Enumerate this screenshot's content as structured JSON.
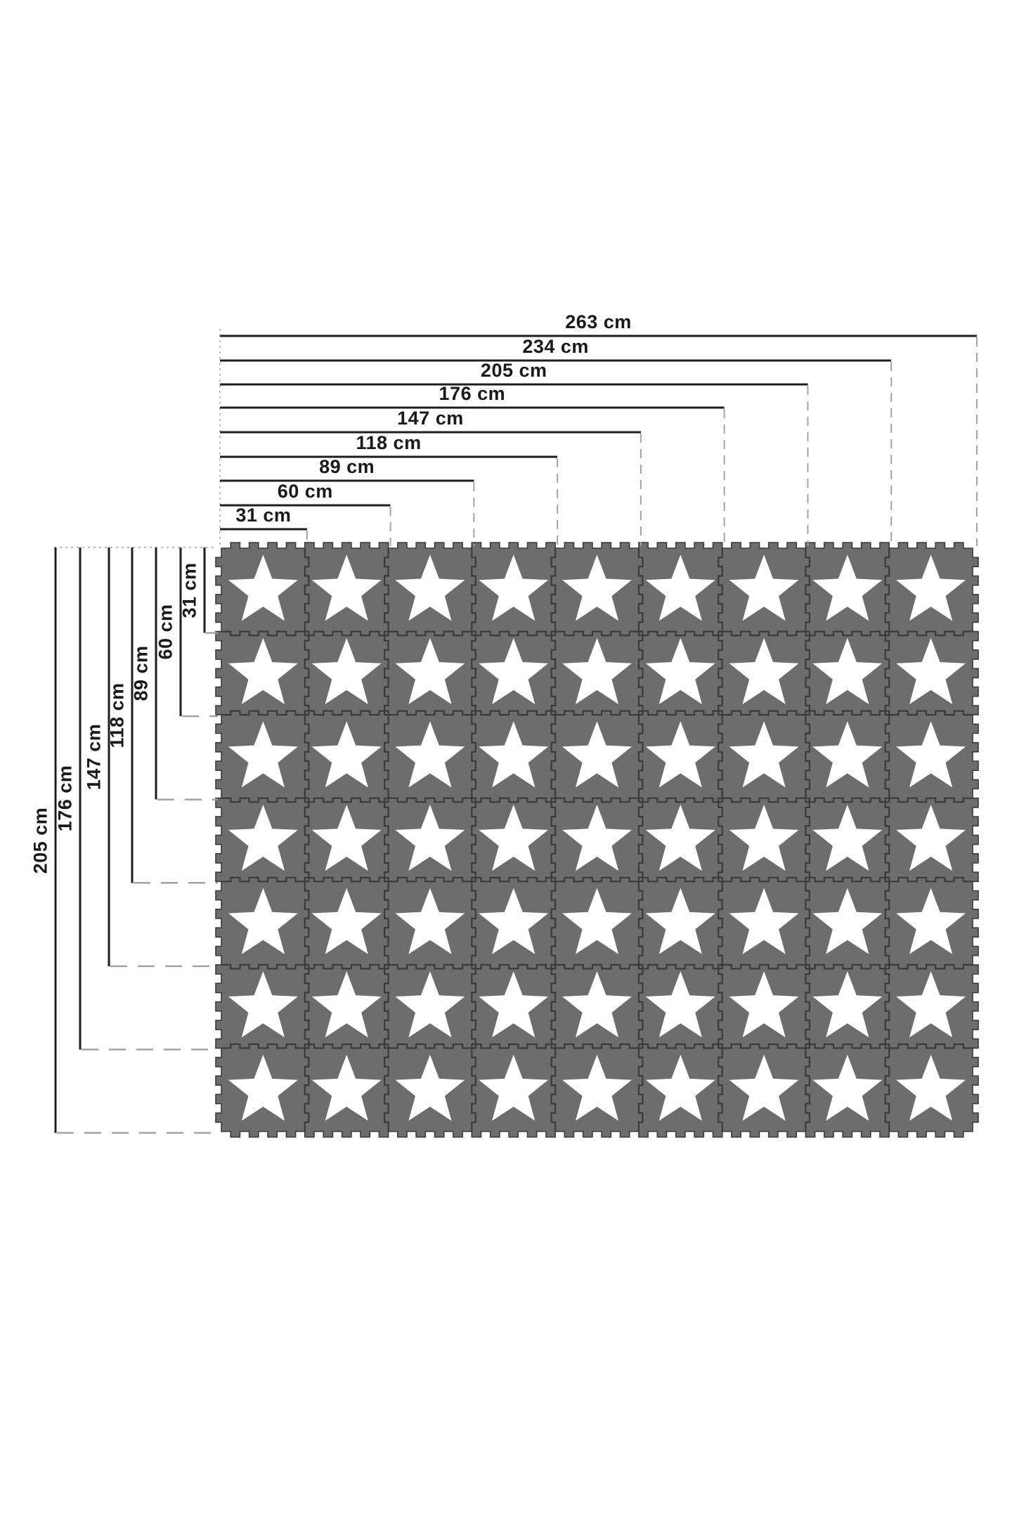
{
  "page": {
    "background": "#ffffff"
  },
  "mat": {
    "rows": 7,
    "cols": 9,
    "tile_color": "#6d6d6d",
    "seam_color": "#3a3a3a",
    "star_color": "#ffffff",
    "motif": "star"
  },
  "dimensions": {
    "unit": "cm",
    "horizontal": [
      {
        "label": "263 cm",
        "value_cm": 263,
        "tiles": 9
      },
      {
        "label": "234 cm",
        "value_cm": 234,
        "tiles": 8
      },
      {
        "label": "205 cm",
        "value_cm": 205,
        "tiles": 7
      },
      {
        "label": "176 cm",
        "value_cm": 176,
        "tiles": 6
      },
      {
        "label": "147 cm",
        "value_cm": 147,
        "tiles": 5
      },
      {
        "label": "118 cm",
        "value_cm": 118,
        "tiles": 4
      },
      {
        "label": "89 cm",
        "value_cm": 89,
        "tiles": 3
      },
      {
        "label": "60 cm",
        "value_cm": 60,
        "tiles": 2
      },
      {
        "label": "31 cm",
        "value_cm": 31,
        "tiles": 1
      }
    ],
    "vertical": [
      {
        "label": "205 cm",
        "value_cm": 205,
        "tiles": 7
      },
      {
        "label": "176 cm",
        "value_cm": 176,
        "tiles": 6
      },
      {
        "label": "147 cm",
        "value_cm": 147,
        "tiles": 5
      },
      {
        "label": "118 cm",
        "value_cm": 118,
        "tiles": 4
      },
      {
        "label": "89 cm",
        "value_cm": 89,
        "tiles": 3
      },
      {
        "label": "60 cm",
        "value_cm": 60,
        "tiles": 2
      },
      {
        "label": "31 cm",
        "value_cm": 31,
        "tiles": 1
      }
    ]
  },
  "colors": {
    "dimension_line": "#1e1e1e",
    "label_text": "#1a1a1a",
    "dashed_guide": "#a3a3a3",
    "dotted_guide": "#bdbdbd"
  }
}
